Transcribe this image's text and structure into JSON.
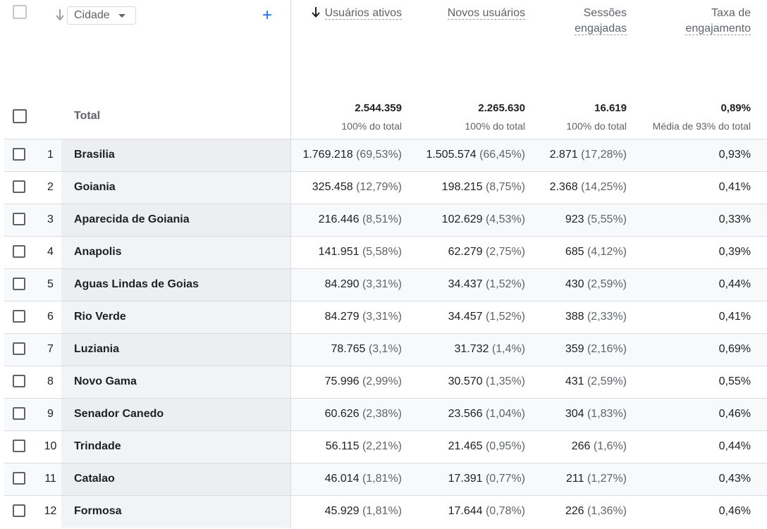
{
  "header": {
    "dimension_label": "Cidade",
    "add_label": "+",
    "metrics": [
      {
        "line1": "Usuários ativos",
        "line2": ""
      },
      {
        "line1": "Novos usuários",
        "line2": ""
      },
      {
        "line1": "Sessões",
        "line2": "engajadas"
      },
      {
        "line1": "Taxa de",
        "line2": "engajamento"
      }
    ]
  },
  "totals": {
    "label": "Total",
    "values": [
      "2.544.359",
      "2.265.630",
      "16.619",
      "0,89%"
    ],
    "subs": [
      "100% do total",
      "100% do total",
      "100% do total",
      "Média de 93% do total"
    ]
  },
  "rows": [
    {
      "idx": "1",
      "city": "Brasilia",
      "active": "1.769.218",
      "active_pct": "(69,53%)",
      "new": "1.505.574",
      "new_pct": "(66,45%)",
      "sessions": "2.871",
      "sessions_pct": "(17,28%)",
      "rate": "0,93%"
    },
    {
      "idx": "2",
      "city": "Goiania",
      "active": "325.458",
      "active_pct": "(12,79%)",
      "new": "198.215",
      "new_pct": "(8,75%)",
      "sessions": "2.368",
      "sessions_pct": "(14,25%)",
      "rate": "0,41%"
    },
    {
      "idx": "3",
      "city": "Aparecida de Goiania",
      "active": "216.446",
      "active_pct": "(8,51%)",
      "new": "102.629",
      "new_pct": "(4,53%)",
      "sessions": "923",
      "sessions_pct": "(5,55%)",
      "rate": "0,33%"
    },
    {
      "idx": "4",
      "city": "Anapolis",
      "active": "141.951",
      "active_pct": "(5,58%)",
      "new": "62.279",
      "new_pct": "(2,75%)",
      "sessions": "685",
      "sessions_pct": "(4,12%)",
      "rate": "0,39%"
    },
    {
      "idx": "5",
      "city": "Aguas Lindas de Goias",
      "active": "84.290",
      "active_pct": "(3,31%)",
      "new": "34.437",
      "new_pct": "(1,52%)",
      "sessions": "430",
      "sessions_pct": "(2,59%)",
      "rate": "0,44%"
    },
    {
      "idx": "6",
      "city": "Rio Verde",
      "active": "84.279",
      "active_pct": "(3,31%)",
      "new": "34.457",
      "new_pct": "(1,52%)",
      "sessions": "388",
      "sessions_pct": "(2,33%)",
      "rate": "0,41%"
    },
    {
      "idx": "7",
      "city": "Luziania",
      "active": "78.765",
      "active_pct": "(3,1%)",
      "new": "31.732",
      "new_pct": "(1,4%)",
      "sessions": "359",
      "sessions_pct": "(2,16%)",
      "rate": "0,69%"
    },
    {
      "idx": "8",
      "city": "Novo Gama",
      "active": "75.996",
      "active_pct": "(2,99%)",
      "new": "30.570",
      "new_pct": "(1,35%)",
      "sessions": "431",
      "sessions_pct": "(2,59%)",
      "rate": "0,55%"
    },
    {
      "idx": "9",
      "city": "Senador Canedo",
      "active": "60.626",
      "active_pct": "(2,38%)",
      "new": "23.566",
      "new_pct": "(1,04%)",
      "sessions": "304",
      "sessions_pct": "(1,83%)",
      "rate": "0,46%"
    },
    {
      "idx": "10",
      "city": "Trindade",
      "active": "56.115",
      "active_pct": "(2,21%)",
      "new": "21.465",
      "new_pct": "(0,95%)",
      "sessions": "266",
      "sessions_pct": "(1,6%)",
      "rate": "0,44%"
    },
    {
      "idx": "11",
      "city": "Catalao",
      "active": "46.014",
      "active_pct": "(1,81%)",
      "new": "17.391",
      "new_pct": "(0,77%)",
      "sessions": "211",
      "sessions_pct": "(1,27%)",
      "rate": "0,43%"
    },
    {
      "idx": "12",
      "city": "Formosa",
      "active": "45.929",
      "active_pct": "(1,81%)",
      "new": "17.644",
      "new_pct": "(0,78%)",
      "sessions": "226",
      "sessions_pct": "(1,36%)",
      "rate": "0,46%"
    }
  ]
}
